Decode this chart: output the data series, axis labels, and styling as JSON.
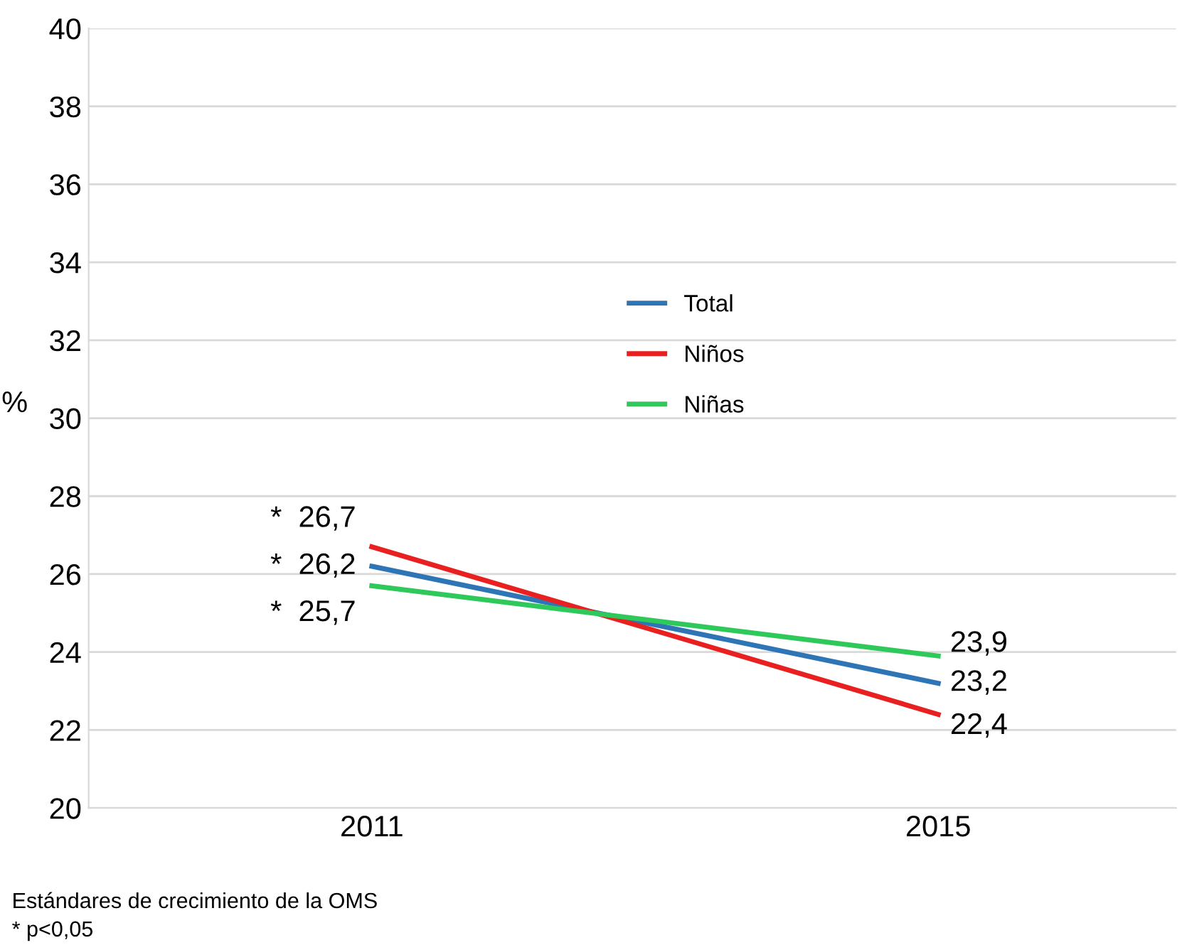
{
  "chart_data": {
    "type": "line",
    "ylabel": "%",
    "categories": [
      "2011",
      "2015"
    ],
    "series": [
      {
        "name": "Total",
        "color": "#2e75b6",
        "values": [
          26.2,
          23.2
        ],
        "value_labels": [
          "*  26,2",
          "23,2"
        ]
      },
      {
        "name": "Niños",
        "color": "#e8201f",
        "values": [
          26.7,
          22.4
        ],
        "value_labels": [
          "*  26,7",
          "22,4"
        ]
      },
      {
        "name": "Niñas",
        "color": "#2ec95a",
        "values": [
          25.7,
          23.9
        ],
        "value_labels": [
          "*  25,7",
          "23,9"
        ]
      }
    ],
    "ylim": [
      20,
      40
    ],
    "yticks": [
      20,
      22,
      24,
      26,
      28,
      30,
      32,
      34,
      36,
      38,
      40
    ],
    "grid": "y",
    "legend": "center",
    "marker": "none",
    "line_style": "solid",
    "annotations": [
      "Estándares de crecimiento de la OMS",
      "* p<0,05"
    ]
  }
}
